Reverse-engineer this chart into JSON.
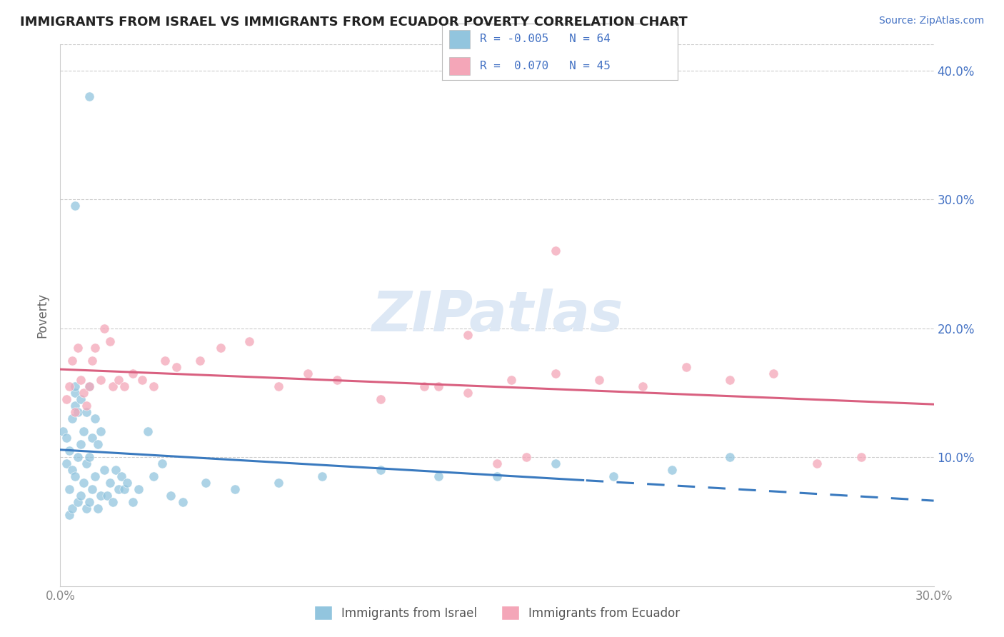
{
  "title": "IMMIGRANTS FROM ISRAEL VS IMMIGRANTS FROM ECUADOR POVERTY CORRELATION CHART",
  "source": "Source: ZipAtlas.com",
  "ylabel": "Poverty",
  "xmin": 0.0,
  "xmax": 0.3,
  "ymin": 0.0,
  "ymax": 0.42,
  "yticks": [
    0.1,
    0.2,
    0.3,
    0.4
  ],
  "ytick_labels": [
    "10.0%",
    "20.0%",
    "30.0%",
    "40.0%"
  ],
  "color_blue": "#92c5de",
  "color_pink": "#f4a6b8",
  "color_blue_line": "#3a7abf",
  "color_pink_line": "#d96080",
  "color_grid": "#cccccc",
  "color_title": "#222222",
  "color_source": "#4472c4",
  "color_legend_text": "#4472c4",
  "color_axis_text": "#888888",
  "watermark_color": "#dde8f5",
  "blue_x": [
    0.001,
    0.002,
    0.002,
    0.003,
    0.003,
    0.003,
    0.004,
    0.004,
    0.004,
    0.005,
    0.005,
    0.005,
    0.005,
    0.006,
    0.006,
    0.006,
    0.007,
    0.007,
    0.007,
    0.008,
    0.008,
    0.009,
    0.009,
    0.009,
    0.01,
    0.01,
    0.01,
    0.011,
    0.011,
    0.012,
    0.012,
    0.013,
    0.013,
    0.014,
    0.014,
    0.015,
    0.016,
    0.017,
    0.018,
    0.019,
    0.02,
    0.021,
    0.022,
    0.023,
    0.025,
    0.027,
    0.03,
    0.032,
    0.035,
    0.038,
    0.042,
    0.05,
    0.06,
    0.075,
    0.09,
    0.11,
    0.13,
    0.15,
    0.17,
    0.19,
    0.21,
    0.23,
    0.01,
    0.005
  ],
  "blue_y": [
    0.12,
    0.095,
    0.115,
    0.055,
    0.075,
    0.105,
    0.06,
    0.09,
    0.13,
    0.085,
    0.14,
    0.15,
    0.155,
    0.065,
    0.1,
    0.135,
    0.07,
    0.11,
    0.145,
    0.08,
    0.12,
    0.06,
    0.095,
    0.135,
    0.065,
    0.1,
    0.155,
    0.075,
    0.115,
    0.085,
    0.13,
    0.06,
    0.11,
    0.07,
    0.12,
    0.09,
    0.07,
    0.08,
    0.065,
    0.09,
    0.075,
    0.085,
    0.075,
    0.08,
    0.065,
    0.075,
    0.12,
    0.085,
    0.095,
    0.07,
    0.065,
    0.08,
    0.075,
    0.08,
    0.085,
    0.09,
    0.085,
    0.085,
    0.095,
    0.085,
    0.09,
    0.1,
    0.38,
    0.295
  ],
  "pink_x": [
    0.002,
    0.003,
    0.004,
    0.005,
    0.006,
    0.007,
    0.008,
    0.009,
    0.01,
    0.011,
    0.012,
    0.014,
    0.015,
    0.017,
    0.018,
    0.02,
    0.022,
    0.025,
    0.028,
    0.032,
    0.036,
    0.04,
    0.048,
    0.055,
    0.065,
    0.075,
    0.085,
    0.095,
    0.11,
    0.125,
    0.14,
    0.155,
    0.17,
    0.185,
    0.2,
    0.215,
    0.23,
    0.245,
    0.26,
    0.275,
    0.13,
    0.14,
    0.15,
    0.16,
    0.17
  ],
  "pink_y": [
    0.145,
    0.155,
    0.175,
    0.135,
    0.185,
    0.16,
    0.15,
    0.14,
    0.155,
    0.175,
    0.185,
    0.16,
    0.2,
    0.19,
    0.155,
    0.16,
    0.155,
    0.165,
    0.16,
    0.155,
    0.175,
    0.17,
    0.175,
    0.185,
    0.19,
    0.155,
    0.165,
    0.16,
    0.145,
    0.155,
    0.195,
    0.16,
    0.165,
    0.16,
    0.155,
    0.17,
    0.16,
    0.165,
    0.095,
    0.1,
    0.155,
    0.15,
    0.095,
    0.1,
    0.26
  ]
}
